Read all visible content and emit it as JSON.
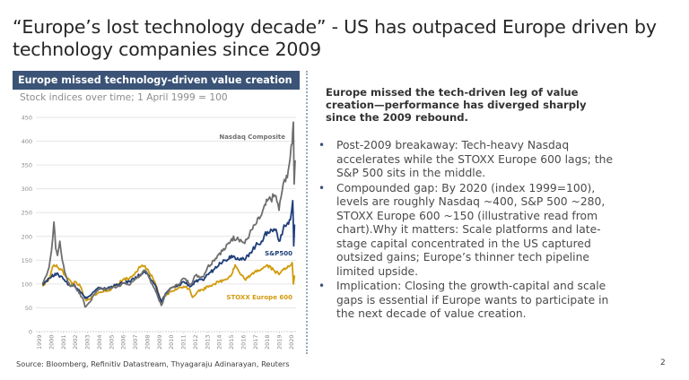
{
  "slide": {
    "title": "“Europe’s lost technology decade” - US has outpaced Europe driven by technology companies since 2009",
    "chart_header": "Europe missed technology-driven value creation",
    "chart_subtitle": "Stock indices over time; 1 April 1999 = 100",
    "right_heading": "Europe missed the tech-driven leg of value creation—performance  has diverged sharply since the 2009 rebound.",
    "bullets": [
      "Post-2009 breakaway: Tech-heavy Nasdaq accelerates while the STOXX Europe 600 lags; the S&P 500 sits in the middle.",
      "Compounded gap: By 2020 (index 1999=100), levels are roughly Nasdaq  ~400, S&P 500 ~280, STOXX Europe 600 ~150 (illustrative read from chart).Why it matters: Scale platforms and late-stage capital concentrated in the US captured outsized gains; Europe’s thinner tech pipeline limited upside.",
      "Implication: Closing the growth-capital and scale gaps is essential if Europe wants to participate  in the next decade of value creation."
    ],
    "bullet_icon": "bullet-dot-icon",
    "source": "Source: Bloomberg, Refinitiv Datastream, Thyagaraju  Adinarayan,  Reuters",
    "page_number": "2",
    "colors": {
      "header_bg": "#3b5376",
      "nasdaq": "#6e6e6e",
      "sp500": "#1f3f7a",
      "stoxx": "#d19b0c"
    }
  },
  "chart_data": {
    "type": "line",
    "title": "Stock indices over time; 1 April 1999 = 100",
    "xlabel": "",
    "ylabel": "",
    "ylim": [
      0,
      450
    ],
    "xlim": [
      1999,
      2020.3
    ],
    "yticks": [
      0,
      50,
      100,
      150,
      200,
      250,
      300,
      350,
      400,
      450
    ],
    "xticks": [
      "1999",
      "2000",
      "2001",
      "2002",
      "2003",
      "2004",
      "2005",
      "2006",
      "2007",
      "2008",
      "2009",
      "2010",
      "2011",
      "2012",
      "2013",
      "2014",
      "2015",
      "2016",
      "2017",
      "2018",
      "2019",
      "2020"
    ],
    "grid": true,
    "legend": "inline labels at right end of lines",
    "series": [
      {
        "name": "Nasdaq Composite",
        "color": "#6e6e6e",
        "x": [
          1999.25,
          1999.5,
          1999.8,
          2000.0,
          2000.2,
          2000.35,
          2000.5,
          2000.7,
          2000.9,
          2001.1,
          2001.3,
          2001.6,
          2001.9,
          2002.3,
          2002.6,
          2002.8,
          2003.2,
          2003.6,
          2004.0,
          2004.5,
          2005.0,
          2005.5,
          2006.0,
          2006.5,
          2007.0,
          2007.5,
          2007.8,
          2008.2,
          2008.6,
          2008.9,
          2009.15,
          2009.5,
          2010.0,
          2010.5,
          2011.0,
          2011.6,
          2012.0,
          2012.6,
          2013.0,
          2013.5,
          2014.0,
          2014.5,
          2015.0,
          2015.5,
          2016.1,
          2016.5,
          2017.0,
          2017.5,
          2018.0,
          2018.7,
          2018.95,
          2019.3,
          2019.5,
          2019.8,
          2020.05,
          2020.15,
          2020.22,
          2020.3
        ],
        "values": [
          100,
          115,
          135,
          170,
          230,
          175,
          160,
          190,
          150,
          125,
          110,
          95,
          100,
          80,
          70,
          52,
          62,
          80,
          92,
          88,
          92,
          95,
          102,
          98,
          112,
          120,
          128,
          110,
          90,
          70,
          55,
          78,
          92,
          98,
          112,
          100,
          118,
          115,
          135,
          150,
          165,
          175,
          195,
          198,
          185,
          205,
          225,
          245,
          275,
          285,
          255,
          310,
          315,
          350,
          395,
          440,
          310,
          360
        ]
      },
      {
        "name": "S&P500",
        "color": "#1f3f7a",
        "x": [
          1999.25,
          1999.5,
          1999.8,
          2000.0,
          2000.3,
          2000.6,
          2000.9,
          2001.2,
          2001.6,
          2001.9,
          2002.3,
          2002.6,
          2002.8,
          2003.2,
          2003.6,
          2004.0,
          2004.5,
          2005.0,
          2005.5,
          2006.0,
          2006.5,
          2007.0,
          2007.5,
          2007.8,
          2008.2,
          2008.6,
          2008.9,
          2009.15,
          2009.5,
          2010.0,
          2010.5,
          2011.0,
          2011.6,
          2012.0,
          2012.6,
          2013.0,
          2013.5,
          2014.0,
          2014.5,
          2015.0,
          2015.5,
          2016.1,
          2016.5,
          2017.0,
          2017.5,
          2018.0,
          2018.7,
          2018.95,
          2019.3,
          2019.6,
          2019.9,
          2020.1,
          2020.18,
          2020.25
        ],
        "values": [
          100,
          105,
          112,
          115,
          122,
          118,
          115,
          105,
          95,
          98,
          88,
          78,
          70,
          75,
          85,
          92,
          90,
          95,
          98,
          102,
          105,
          115,
          120,
          125,
          112,
          100,
          80,
          62,
          80,
          92,
          95,
          105,
          95,
          105,
          108,
          120,
          130,
          145,
          150,
          160,
          155,
          150,
          165,
          180,
          190,
          210,
          215,
          190,
          215,
          225,
          235,
          275,
          180,
          225
        ]
      },
      {
        "name": "STOXX Europe 600",
        "color": "#d19b0c",
        "x": [
          1999.25,
          1999.5,
          1999.8,
          2000.0,
          2000.2,
          2000.5,
          2000.8,
          2001.1,
          2001.4,
          2001.7,
          2002.0,
          2002.4,
          2002.7,
          2002.9,
          2003.2,
          2003.6,
          2004.0,
          2004.5,
          2005.0,
          2005.5,
          2006.0,
          2006.5,
          2007.0,
          2007.4,
          2007.8,
          2008.2,
          2008.6,
          2008.9,
          2009.15,
          2009.5,
          2010.0,
          2010.5,
          2011.0,
          2011.5,
          2011.75,
          2012.2,
          2012.6,
          2013.0,
          2013.5,
          2014.0,
          2014.5,
          2015.0,
          2015.3,
          2015.7,
          2016.1,
          2016.5,
          2017.0,
          2017.5,
          2018.0,
          2018.5,
          2018.95,
          2019.3,
          2019.7,
          2020.05,
          2020.15,
          2020.25
        ],
        "values": [
          95,
          102,
          112,
          128,
          140,
          135,
          130,
          120,
          112,
          100,
          105,
          95,
          75,
          65,
          68,
          78,
          82,
          85,
          90,
          100,
          110,
          112,
          125,
          135,
          138,
          122,
          105,
          80,
          62,
          75,
          85,
          90,
          95,
          90,
          72,
          85,
          88,
          95,
          100,
          105,
          110,
          120,
          140,
          122,
          110,
          115,
          128,
          132,
          140,
          130,
          120,
          130,
          138,
          145,
          100,
          118
        ]
      }
    ]
  }
}
